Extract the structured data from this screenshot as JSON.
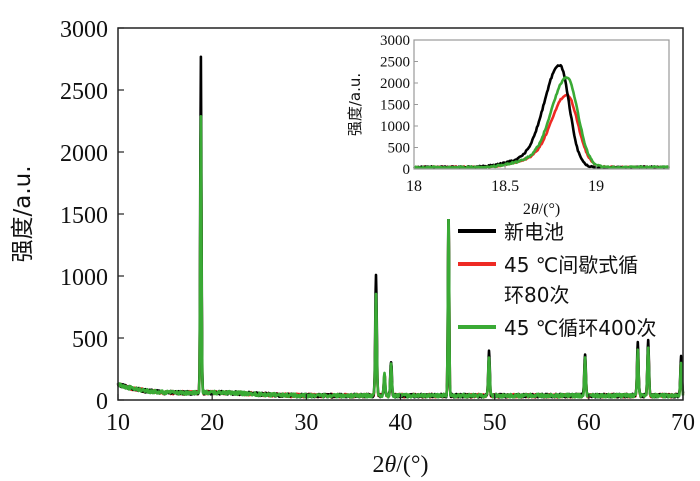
{
  "chart_data": [
    {
      "type": "line",
      "ylabel": "强度/a.u.",
      "xlabel_prefix": "2",
      "xlabel_theta": "θ",
      "xlabel_suffix": "/(°)",
      "xlim": [
        10,
        70
      ],
      "ylim": [
        0,
        3000
      ],
      "xticks": [
        "10",
        "20",
        "30",
        "40",
        "50",
        "60",
        "70"
      ],
      "yticks": [
        "0",
        "500",
        "1000",
        "1500",
        "2000",
        "2500",
        "3000"
      ],
      "legend_position": "right",
      "legend": {
        "items": [
          {
            "lines": [
              "新电池"
            ]
          },
          {
            "lines": [
              "45 ℃间歇式循",
              "环80次"
            ]
          },
          {
            "lines": [
              "45 ℃循环400次"
            ]
          }
        ]
      },
      "series": [
        {
          "name": "新电池",
          "color": "#000000",
          "peaks": [
            [
              18.8,
              2700
            ],
            [
              37.4,
              980
            ],
            [
              38.3,
              140
            ],
            [
              39.0,
              280
            ],
            [
              45.1,
              1550
            ],
            [
              49.4,
              350
            ],
            [
              59.6,
              340
            ],
            [
              65.2,
              420
            ],
            [
              66.3,
              460
            ],
            [
              69.8,
              320
            ]
          ]
        },
        {
          "name": "45 ℃间歇式循环80次",
          "color": "#ee2a24",
          "peaks": [
            [
              18.8,
              2050
            ],
            [
              37.4,
              750
            ],
            [
              38.3,
              170
            ],
            [
              39.0,
              230
            ],
            [
              45.1,
              1480
            ],
            [
              49.4,
              300
            ],
            [
              59.6,
              300
            ],
            [
              65.2,
              380
            ],
            [
              66.3,
              400
            ],
            [
              69.8,
              280
            ]
          ]
        },
        {
          "name": "45 ℃循环400次",
          "color": "#3aaa35",
          "peaks": [
            [
              18.8,
              2220
            ],
            [
              37.4,
              820
            ],
            [
              38.3,
              180
            ],
            [
              39.0,
              250
            ],
            [
              45.1,
              1520
            ],
            [
              49.4,
              310
            ],
            [
              59.6,
              300
            ],
            [
              65.2,
              360
            ],
            [
              66.3,
              390
            ],
            [
              69.8,
              270
            ]
          ]
        }
      ]
    },
    {
      "type": "line",
      "inset": true,
      "ylabel": "强度/a.u.",
      "xlabel_prefix": "2",
      "xlabel_theta": "θ",
      "xlabel_suffix": "/(°)",
      "xlim": [
        18,
        19.4
      ],
      "ylim": [
        0,
        3000
      ],
      "xticks": [
        "18",
        "18.5",
        "19"
      ],
      "yticks": [
        "0",
        "500",
        "1000",
        "1500",
        "2000",
        "2500",
        "3000"
      ],
      "series": [
        {
          "name": "新电池",
          "color": "#000000",
          "peak": {
            "x": 18.8,
            "y": 2350,
            "w_left": 0.12,
            "w_right": 0.075
          }
        },
        {
          "name": "45 ℃间歇式循环80次",
          "color": "#ee2a24",
          "peak": {
            "x": 18.84,
            "y": 1660,
            "w_left": 0.12,
            "w_right": 0.085
          }
        },
        {
          "name": "45 ℃循环400次",
          "color": "#3aaa35",
          "peak": {
            "x": 18.84,
            "y": 2060,
            "w_left": 0.12,
            "w_right": 0.085
          }
        }
      ]
    }
  ]
}
